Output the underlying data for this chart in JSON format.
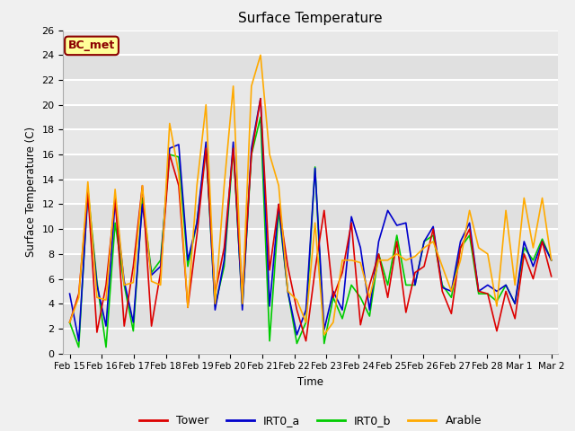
{
  "title": "Surface Temperature",
  "ylabel": "Surface Temperature (C)",
  "xlabel": "Time",
  "ylim": [
    0,
    26
  ],
  "bg_color": "#f0f0f0",
  "plot_bg": "#e8e8e8",
  "annotation": "BC_met",
  "annotation_bg": "#ffff99",
  "annotation_border": "#8b0000",
  "xtick_labels": [
    "Feb 15",
    "Feb 16",
    "Feb 17",
    "Feb 18",
    "Feb 19",
    "Feb 20",
    "Feb 21",
    "Feb 22",
    "Feb 23",
    "Feb 24",
    "Feb 25",
    "Feb 26",
    "Feb 27",
    "Feb 28",
    "Mar 1",
    "Mar 2"
  ],
  "series": {
    "Tower": {
      "color": "#dd0000",
      "lw": 1.2
    },
    "IRT0_a": {
      "color": "#0000cc",
      "lw": 1.2
    },
    "IRT0_b": {
      "color": "#00cc00",
      "lw": 1.2
    },
    "Arable": {
      "color": "#ffaa00",
      "lw": 1.2
    }
  },
  "Tower": [
    2.5,
    4.8,
    13.0,
    1.7,
    5.5,
    12.5,
    2.2,
    7.0,
    13.5,
    2.2,
    6.5,
    16.0,
    13.5,
    3.7,
    9.5,
    16.5,
    4.8,
    8.5,
    16.5,
    4.8,
    16.0,
    20.5,
    6.7,
    12.0,
    7.0,
    3.5,
    1.0,
    6.7,
    11.5,
    4.5,
    6.5,
    10.5,
    2.3,
    5.5,
    8.0,
    4.5,
    9.0,
    3.3,
    6.5,
    7.0,
    10.0,
    5.0,
    3.2,
    8.5,
    10.0,
    5.0,
    4.8,
    1.8,
    5.0,
    2.8,
    8.0,
    6.0,
    9.0,
    6.2
  ],
  "IRT0_a": [
    4.8,
    1.0,
    12.8,
    5.5,
    2.2,
    12.2,
    5.8,
    2.5,
    12.0,
    6.3,
    7.0,
    16.5,
    16.8,
    7.5,
    10.5,
    17.0,
    3.5,
    7.5,
    17.0,
    3.5,
    16.5,
    20.5,
    3.8,
    12.0,
    5.0,
    1.5,
    3.5,
    14.9,
    1.9,
    5.0,
    3.5,
    11.0,
    8.5,
    3.5,
    9.0,
    11.5,
    10.3,
    10.5,
    5.5,
    9.0,
    10.2,
    5.3,
    5.0,
    9.0,
    10.5,
    5.0,
    5.5,
    5.0,
    5.5,
    4.0,
    9.0,
    7.0,
    9.0,
    7.5
  ],
  "IRT0_b": [
    2.5,
    0.5,
    13.2,
    5.8,
    0.5,
    10.5,
    5.5,
    1.8,
    12.5,
    6.5,
    7.5,
    16.0,
    15.8,
    7.0,
    10.5,
    16.5,
    3.8,
    7.0,
    16.5,
    3.8,
    16.0,
    19.0,
    1.0,
    11.5,
    5.0,
    0.8,
    2.5,
    15.0,
    0.8,
    4.5,
    2.8,
    5.5,
    4.5,
    3.0,
    8.0,
    5.5,
    9.5,
    5.5,
    5.5,
    9.0,
    9.5,
    5.5,
    4.5,
    8.5,
    9.5,
    4.8,
    4.8,
    4.2,
    5.5,
    4.0,
    8.5,
    7.5,
    9.2,
    7.5
  ],
  "Arable": [
    2.5,
    4.5,
    13.8,
    4.5,
    4.3,
    13.2,
    5.5,
    5.7,
    13.5,
    5.8,
    5.5,
    18.5,
    14.5,
    3.7,
    13.5,
    20.0,
    4.0,
    13.5,
    21.5,
    4.0,
    21.5,
    24.0,
    16.0,
    13.5,
    5.0,
    4.3,
    2.5,
    10.5,
    1.5,
    2.5,
    7.5,
    7.5,
    7.3,
    4.5,
    7.5,
    7.5,
    8.0,
    7.5,
    7.8,
    8.5,
    9.0,
    7.0,
    5.0,
    7.5,
    11.5,
    8.5,
    8.0,
    3.8,
    11.5,
    5.5,
    12.5,
    8.5,
    12.5,
    7.5
  ]
}
